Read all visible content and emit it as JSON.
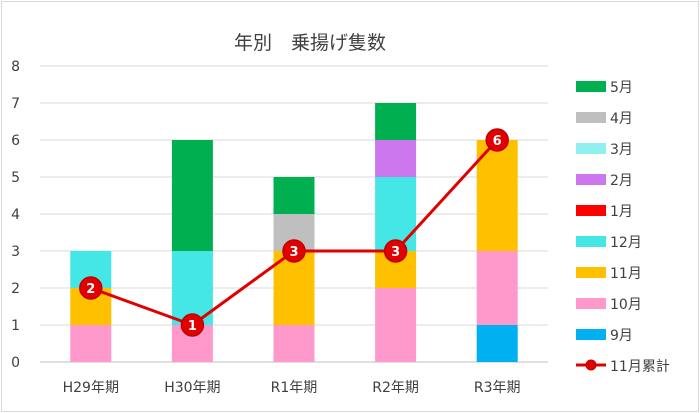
{
  "chart_data": {
    "type": "bar",
    "stacked": true,
    "title": "年別　乗揚げ隻数",
    "xlabel": "",
    "ylabel": "",
    "ylim": [
      0,
      8
    ],
    "yticks": [
      "0",
      "1",
      "2",
      "3",
      "4",
      "5",
      "6",
      "7",
      "8"
    ],
    "grid": true,
    "legend_position": "right",
    "categories": [
      "H29年期",
      "H30年期",
      "R1年期",
      "R2年期",
      "R3年期"
    ],
    "series": [
      {
        "name": "9月",
        "color": "#00b0f0",
        "values": [
          0,
          0,
          0,
          0,
          1
        ]
      },
      {
        "name": "10月",
        "color": "#ff99cc",
        "values": [
          1,
          1,
          1,
          2,
          2
        ]
      },
      {
        "name": "11月",
        "color": "#ffc000",
        "values": [
          1,
          0,
          2,
          1,
          3
        ]
      },
      {
        "name": "12月",
        "color": "#45e6e6",
        "values": [
          1,
          2,
          0,
          2,
          0
        ]
      },
      {
        "name": "1月",
        "color": "#ff0000",
        "values": [
          0,
          0,
          0,
          0,
          0
        ]
      },
      {
        "name": "2月",
        "color": "#cc77ee",
        "values": [
          0,
          0,
          0,
          1,
          0
        ]
      },
      {
        "name": "3月",
        "color": "#8ff0f0",
        "values": [
          0,
          0,
          0,
          0,
          0
        ]
      },
      {
        "name": "4月",
        "color": "#bfbfbf",
        "values": [
          0,
          0,
          1,
          0,
          0
        ]
      },
      {
        "name": "5月",
        "color": "#00b050",
        "values": [
          0,
          3,
          1,
          1,
          0
        ]
      }
    ],
    "line_series": {
      "name": "11月累計",
      "color": "#e00000",
      "values": [
        2,
        1,
        3,
        3,
        6
      ],
      "labels": [
        "2",
        "1",
        "3",
        "3",
        "6"
      ]
    }
  }
}
